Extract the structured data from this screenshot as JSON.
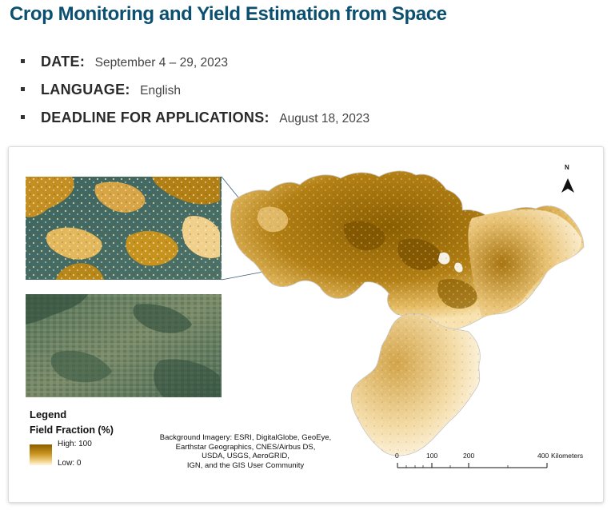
{
  "page": {
    "title": "Crop Monitoring and Yield Estimation from Space"
  },
  "info": [
    {
      "label": "DATE:",
      "value": "September 4 – 29, 2023"
    },
    {
      "label": "LANGUAGE:",
      "value": "English"
    },
    {
      "label": "DEADLINE FOR APPLICATIONS:",
      "value": "August 18, 2023"
    }
  ],
  "map": {
    "legend_title": "Legend",
    "legend_subtitle": "Field Fraction (%)",
    "legend_high": "High: 100",
    "legend_low": "Low: 0",
    "credits": [
      "Background Imagery: ESRI, DigitalGlobe, GeoEye,",
      "Earthstar Geographics, CNES/Airbus DS,",
      "USDA, USGS, AeroGRID,",
      "IGN, and the GIS User Community"
    ],
    "north": "N",
    "scale": {
      "ticks": [
        "0",
        "100",
        "200",
        "400"
      ],
      "unit": "Kilometers"
    },
    "colors": {
      "high": "#8a5e00",
      "mid": "#c9941e",
      "low": "#fff6e3",
      "forest": "#3f6660"
    }
  }
}
